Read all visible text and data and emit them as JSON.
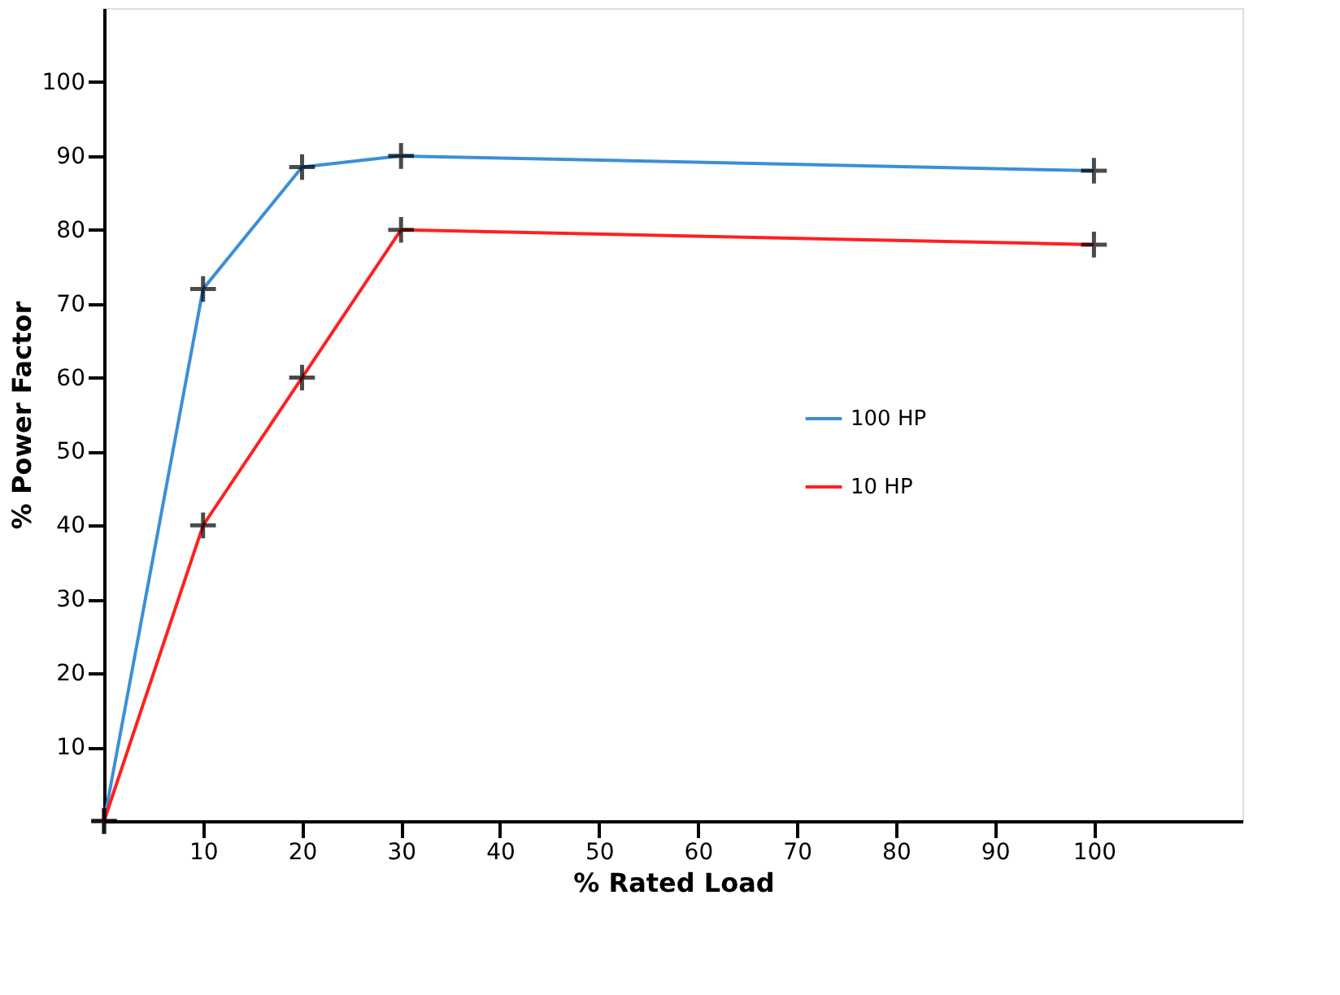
{
  "chart_data": {
    "type": "line",
    "xlabel": "%  Rated Load",
    "ylabel": "% Power Factor",
    "x": [
      0,
      10,
      20,
      30,
      100
    ],
    "series": [
      {
        "name": "100 HP",
        "color": "#3c8fd6",
        "values": [
          0,
          72,
          88.5,
          90,
          88
        ]
      },
      {
        "name": "10 HP",
        "color": "#ff2020",
        "values": [
          0,
          40,
          60,
          80,
          78
        ]
      }
    ],
    "xlim": [
      0,
      115
    ],
    "ylim": [
      0,
      110
    ],
    "xticks": [
      10,
      20,
      30,
      40,
      50,
      60,
      70,
      80,
      90,
      100
    ],
    "yticks": [
      10,
      20,
      30,
      40,
      50,
      60,
      70,
      80,
      90,
      100
    ],
    "grid": false,
    "legend": "right",
    "marker": "cross",
    "line_style": "solid"
  }
}
